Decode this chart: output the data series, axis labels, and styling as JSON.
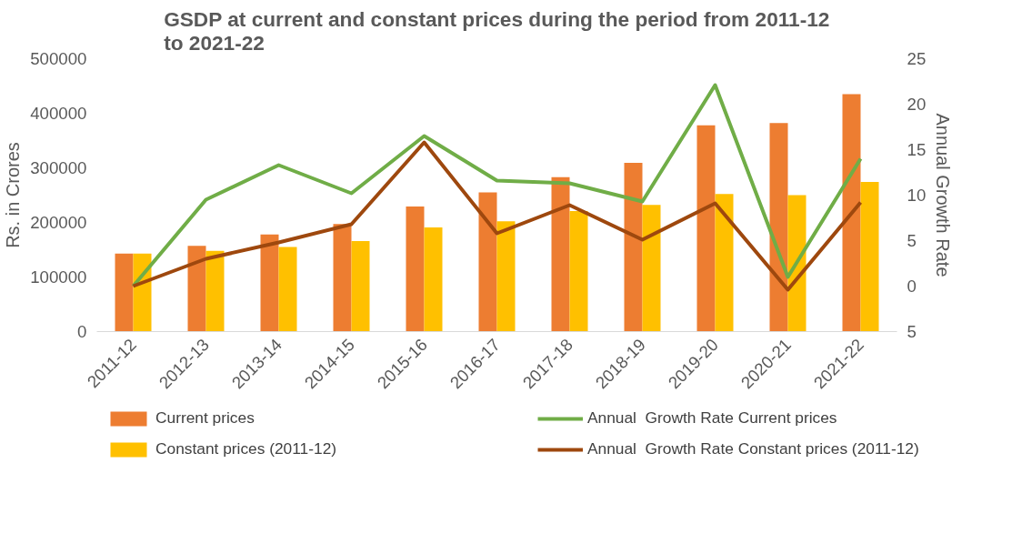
{
  "chart_data": {
    "type": "bar",
    "title": "GSDP at current and constant prices during the period from 2011-12 to 2021-22",
    "ylabel": "Rs. in Crores",
    "y2label": "Annual Growth Rate",
    "categories": [
      "2011-12",
      "2012-13",
      "2013-14",
      "2014-15",
      "2015-16",
      "2016-17",
      "2017-18",
      "2018-19",
      "2019-20",
      "2020-21",
      "2021-22"
    ],
    "series": [
      {
        "name": "Current prices",
        "color": "#ed7d31",
        "values": [
          143000,
          157000,
          178000,
          197000,
          229000,
          255000,
          283000,
          309000,
          378000,
          382000,
          435000
        ]
      },
      {
        "name": "Constant prices (2011-12)",
        "color": "#ffc000",
        "values": [
          143000,
          148000,
          155000,
          166000,
          191000,
          202000,
          221000,
          232000,
          252000,
          250000,
          274000
        ]
      },
      {
        "name": "Annual  Growth Rate Current prices",
        "type": "line",
        "axis": "y2",
        "color": "#70ad47",
        "values": [
          0,
          9.5,
          13.3,
          10.2,
          16.5,
          11.6,
          11.3,
          9.3,
          22.1,
          1.0,
          14.0
        ]
      },
      {
        "name": "Annual  Growth Rate Constant prices (2011-12)",
        "type": "line",
        "axis": "y2",
        "color": "#9e480e",
        "values": [
          0,
          3.0,
          4.8,
          6.8,
          15.8,
          5.8,
          8.9,
          5.1,
          9.1,
          -0.4,
          9.2
        ]
      }
    ],
    "ylim": [
      0,
      500000
    ],
    "yticks": [
      0,
      100000,
      200000,
      300000,
      400000,
      500000
    ],
    "y2lim": [
      -5,
      25
    ],
    "y2ticks": [
      {
        "value": -5,
        "label": "5"
      },
      0,
      5,
      10,
      15,
      20,
      25
    ],
    "grid": false,
    "legend": "bottom",
    "marker": "none",
    "line_style": "solid"
  }
}
